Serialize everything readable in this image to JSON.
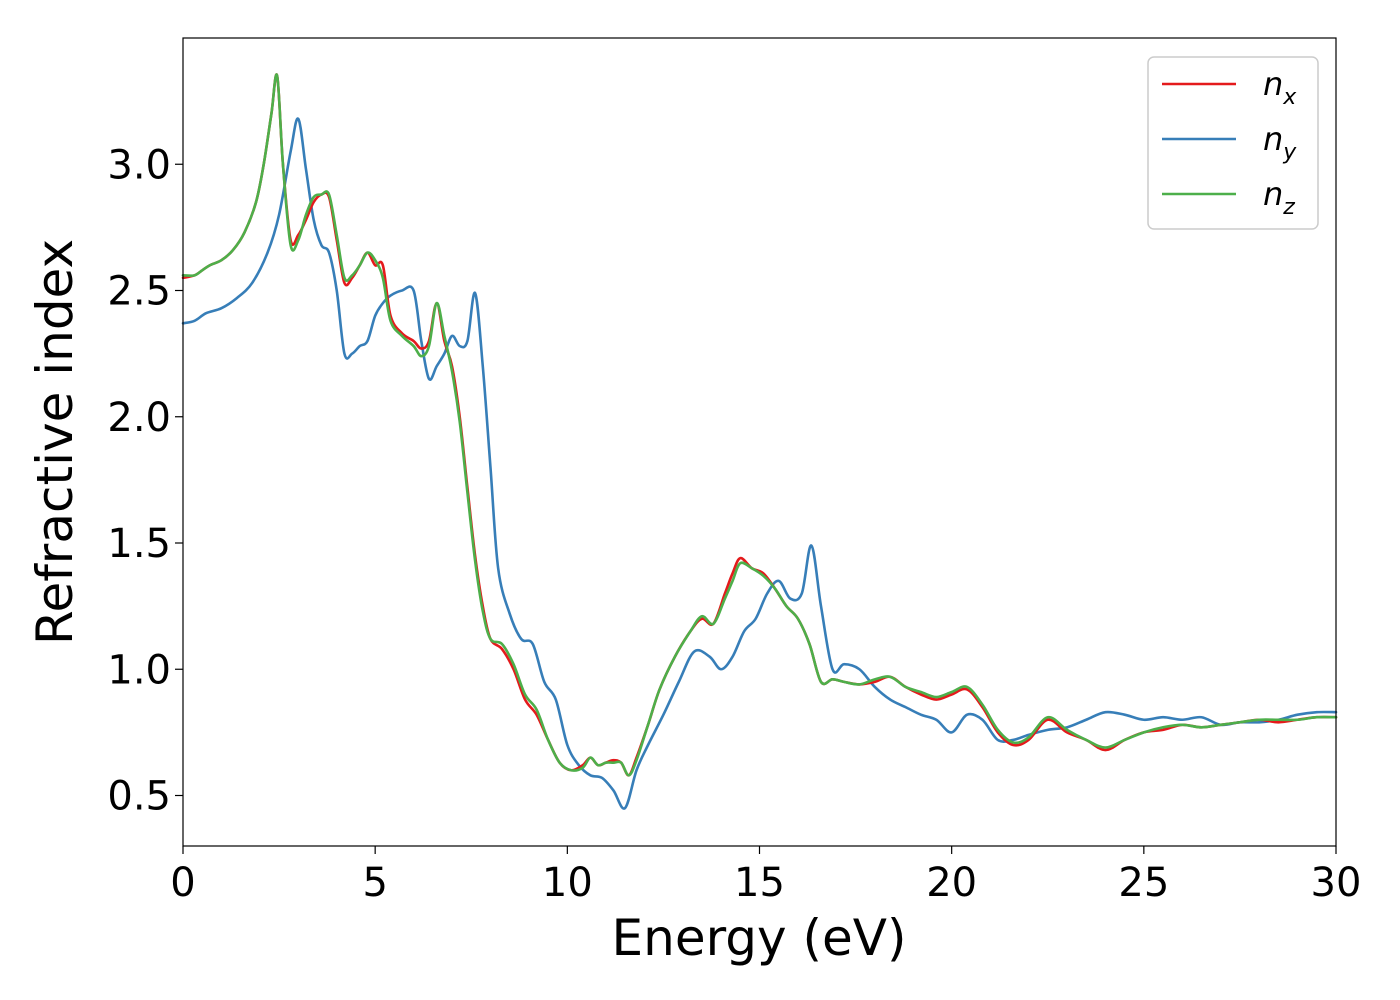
{
  "chart_data": {
    "type": "line",
    "title": "",
    "xlabel": "Energy (eV)",
    "ylabel": "Refractive index",
    "xlim": [
      0,
      30
    ],
    "ylim": [
      0.3,
      3.5
    ],
    "xticks": [
      0,
      5,
      10,
      15,
      20,
      25,
      30
    ],
    "xtick_labels": [
      "0",
      "5",
      "10",
      "15",
      "20",
      "25",
      "30"
    ],
    "yticks": [
      0.5,
      1.0,
      1.5,
      2.0,
      2.5,
      3.0
    ],
    "ytick_labels": [
      "0.5",
      "1.0",
      "1.5",
      "2.0",
      "2.5",
      "3.0"
    ],
    "grid": false,
    "legend_position": "top-right",
    "series": [
      {
        "name": "n_x",
        "legend_main": "n",
        "legend_sub": "x",
        "color": "#e41a1c",
        "x": [
          0,
          0.3,
          0.5,
          0.7,
          1.0,
          1.3,
          1.6,
          1.9,
          2.1,
          2.3,
          2.45,
          2.6,
          2.8,
          3.0,
          3.2,
          3.4,
          3.6,
          3.8,
          4.0,
          4.2,
          4.4,
          4.6,
          4.8,
          5.0,
          5.2,
          5.4,
          5.7,
          6.0,
          6.2,
          6.4,
          6.6,
          6.8,
          7.0,
          7.2,
          7.4,
          7.6,
          7.8,
          8.0,
          8.3,
          8.6,
          8.9,
          9.2,
          9.5,
          9.8,
          10.1,
          10.4,
          10.6,
          10.8,
          11.0,
          11.2,
          11.4,
          11.6,
          11.8,
          12.1,
          12.4,
          12.8,
          13.2,
          13.5,
          13.8,
          14.1,
          14.3,
          14.5,
          14.8,
          15.1,
          15.4,
          15.7,
          16.0,
          16.3,
          16.6,
          16.9,
          17.2,
          17.6,
          18.0,
          18.4,
          18.8,
          19.2,
          19.6,
          20.0,
          20.4,
          20.8,
          21.2,
          21.6,
          22.0,
          22.5,
          23.0,
          23.5,
          24.0,
          24.5,
          25.0,
          25.5,
          26.0,
          26.5,
          27.0,
          27.5,
          28.0,
          28.5,
          29.0,
          29.5,
          30.0
        ],
        "y": [
          2.55,
          2.56,
          2.58,
          2.6,
          2.62,
          2.66,
          2.73,
          2.85,
          3.0,
          3.2,
          3.35,
          3.0,
          2.7,
          2.72,
          2.78,
          2.85,
          2.88,
          2.87,
          2.7,
          2.53,
          2.55,
          2.6,
          2.65,
          2.6,
          2.6,
          2.4,
          2.33,
          2.3,
          2.27,
          2.3,
          2.45,
          2.3,
          2.2,
          2.0,
          1.72,
          1.45,
          1.25,
          1.12,
          1.08,
          1.0,
          0.88,
          0.82,
          0.72,
          0.63,
          0.6,
          0.62,
          0.65,
          0.62,
          0.63,
          0.64,
          0.63,
          0.58,
          0.65,
          0.78,
          0.92,
          1.05,
          1.15,
          1.2,
          1.18,
          1.3,
          1.38,
          1.44,
          1.4,
          1.38,
          1.32,
          1.25,
          1.2,
          1.1,
          0.95,
          0.96,
          0.95,
          0.94,
          0.95,
          0.97,
          0.93,
          0.9,
          0.88,
          0.9,
          0.92,
          0.85,
          0.75,
          0.7,
          0.72,
          0.8,
          0.75,
          0.72,
          0.68,
          0.72,
          0.75,
          0.76,
          0.78,
          0.77,
          0.78,
          0.79,
          0.8,
          0.79,
          0.8,
          0.81,
          0.81
        ]
      },
      {
        "name": "n_y",
        "legend_main": "n",
        "legend_sub": "y",
        "color": "#377eb8",
        "x": [
          0,
          0.3,
          0.6,
          1.0,
          1.4,
          1.8,
          2.2,
          2.5,
          2.8,
          3.0,
          3.2,
          3.4,
          3.6,
          3.8,
          4.0,
          4.2,
          4.4,
          4.6,
          4.8,
          5.0,
          5.2,
          5.4,
          5.7,
          6.0,
          6.2,
          6.4,
          6.6,
          6.8,
          7.0,
          7.2,
          7.4,
          7.6,
          7.8,
          8.0,
          8.2,
          8.5,
          8.8,
          9.1,
          9.4,
          9.7,
          10.0,
          10.3,
          10.6,
          10.9,
          11.2,
          11.5,
          11.8,
          12.1,
          12.5,
          12.9,
          13.3,
          13.7,
          14.0,
          14.3,
          14.6,
          14.9,
          15.2,
          15.5,
          15.8,
          16.1,
          16.35,
          16.6,
          16.9,
          17.2,
          17.6,
          18.0,
          18.4,
          18.8,
          19.2,
          19.6,
          20.0,
          20.4,
          20.8,
          21.2,
          21.6,
          22.0,
          22.5,
          23.0,
          23.5,
          24.0,
          24.5,
          25.0,
          25.5,
          26.0,
          26.5,
          27.0,
          27.5,
          28.0,
          28.5,
          29.0,
          29.5,
          30.0
        ],
        "y": [
          2.37,
          2.38,
          2.41,
          2.43,
          2.47,
          2.53,
          2.65,
          2.8,
          3.05,
          3.18,
          2.98,
          2.78,
          2.68,
          2.65,
          2.5,
          2.25,
          2.25,
          2.28,
          2.3,
          2.4,
          2.45,
          2.48,
          2.5,
          2.5,
          2.3,
          2.15,
          2.2,
          2.25,
          2.32,
          2.28,
          2.3,
          2.49,
          2.2,
          1.8,
          1.4,
          1.22,
          1.12,
          1.1,
          0.95,
          0.88,
          0.7,
          0.62,
          0.58,
          0.57,
          0.52,
          0.45,
          0.6,
          0.7,
          0.82,
          0.95,
          1.07,
          1.05,
          1.0,
          1.05,
          1.15,
          1.2,
          1.3,
          1.35,
          1.28,
          1.3,
          1.49,
          1.25,
          1.0,
          1.02,
          1.0,
          0.93,
          0.88,
          0.85,
          0.82,
          0.8,
          0.75,
          0.82,
          0.8,
          0.72,
          0.72,
          0.74,
          0.76,
          0.77,
          0.8,
          0.83,
          0.82,
          0.8,
          0.81,
          0.8,
          0.81,
          0.78,
          0.79,
          0.79,
          0.8,
          0.82,
          0.83,
          0.83
        ]
      },
      {
        "name": "n_z",
        "legend_main": "n",
        "legend_sub": "z",
        "color": "#4daf4a",
        "x": [
          0,
          0.3,
          0.5,
          0.7,
          1.0,
          1.3,
          1.6,
          1.9,
          2.1,
          2.3,
          2.45,
          2.6,
          2.8,
          3.0,
          3.2,
          3.4,
          3.6,
          3.8,
          4.0,
          4.2,
          4.4,
          4.6,
          4.8,
          5.0,
          5.2,
          5.4,
          5.7,
          6.0,
          6.2,
          6.4,
          6.6,
          6.8,
          7.0,
          7.2,
          7.4,
          7.6,
          7.8,
          8.0,
          8.3,
          8.6,
          8.9,
          9.2,
          9.5,
          9.8,
          10.1,
          10.4,
          10.6,
          10.8,
          11.0,
          11.2,
          11.4,
          11.6,
          11.8,
          12.1,
          12.4,
          12.8,
          13.2,
          13.5,
          13.8,
          14.1,
          14.3,
          14.5,
          14.8,
          15.1,
          15.4,
          15.7,
          16.0,
          16.3,
          16.6,
          16.9,
          17.2,
          17.6,
          18.0,
          18.4,
          18.8,
          19.2,
          19.6,
          20.0,
          20.4,
          20.8,
          21.2,
          21.6,
          22.0,
          22.5,
          23.0,
          23.5,
          24.0,
          24.5,
          25.0,
          25.5,
          26.0,
          26.5,
          27.0,
          27.5,
          28.0,
          28.5,
          29.0,
          29.5,
          30.0
        ],
        "y": [
          2.56,
          2.56,
          2.58,
          2.6,
          2.62,
          2.66,
          2.73,
          2.85,
          3.0,
          3.2,
          3.35,
          3.0,
          2.68,
          2.7,
          2.8,
          2.87,
          2.88,
          2.88,
          2.72,
          2.55,
          2.56,
          2.6,
          2.65,
          2.62,
          2.55,
          2.38,
          2.32,
          2.28,
          2.24,
          2.28,
          2.45,
          2.32,
          2.18,
          1.98,
          1.7,
          1.43,
          1.23,
          1.12,
          1.1,
          1.02,
          0.9,
          0.84,
          0.72,
          0.63,
          0.6,
          0.61,
          0.65,
          0.62,
          0.63,
          0.63,
          0.63,
          0.58,
          0.64,
          0.78,
          0.92,
          1.05,
          1.15,
          1.21,
          1.18,
          1.28,
          1.35,
          1.42,
          1.4,
          1.37,
          1.32,
          1.25,
          1.2,
          1.1,
          0.95,
          0.96,
          0.95,
          0.94,
          0.96,
          0.97,
          0.93,
          0.91,
          0.89,
          0.91,
          0.93,
          0.86,
          0.76,
          0.71,
          0.73,
          0.81,
          0.76,
          0.72,
          0.69,
          0.72,
          0.75,
          0.77,
          0.78,
          0.77,
          0.78,
          0.79,
          0.8,
          0.8,
          0.8,
          0.81,
          0.81
        ]
      }
    ]
  }
}
